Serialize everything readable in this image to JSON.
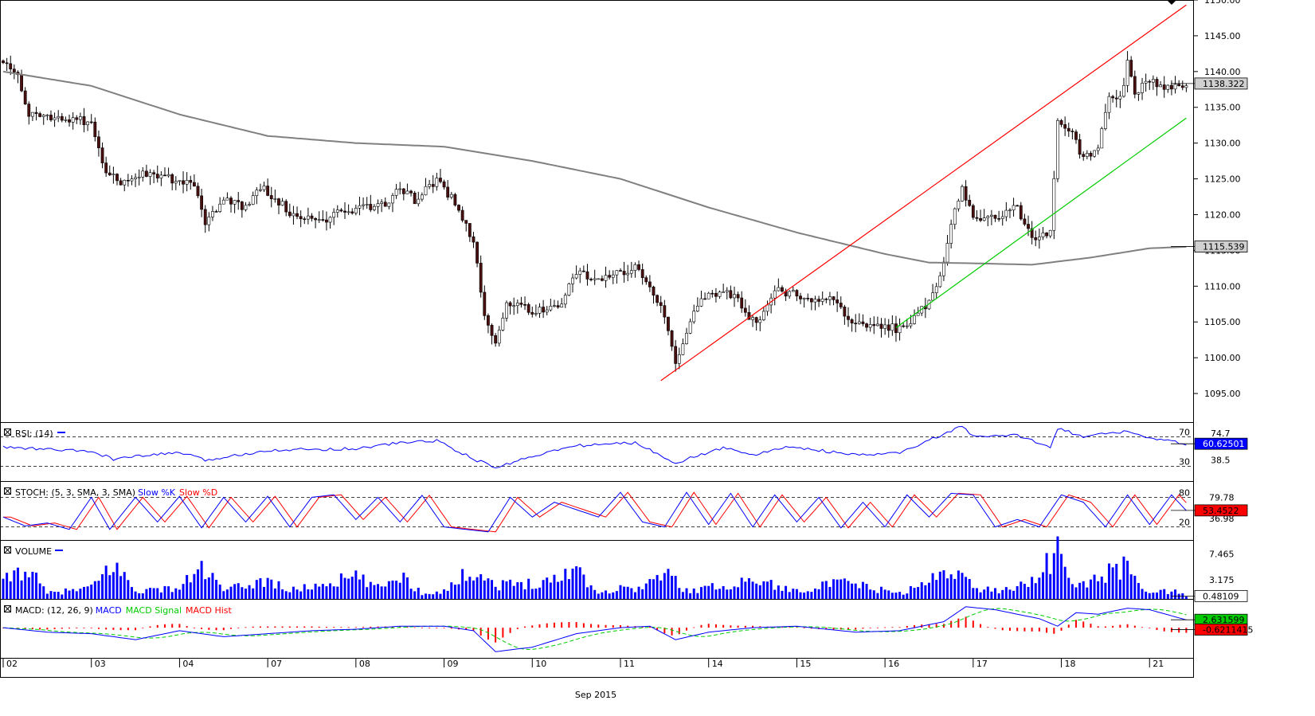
{
  "colors": {
    "bull": "#ffffff",
    "bear": "#4a1010",
    "wick": "#000000",
    "ma": "#808080",
    "upper_channel": "#ff0000",
    "lower_channel": "#00cc00",
    "rsi": "#0000ff",
    "stoch_k": "#0000ff",
    "stoch_d": "#ff0000",
    "volume": "#0000ff",
    "macd": "#0000ff",
    "macd_signal": "#00cc00",
    "macd_hist": "#ff0000",
    "price_label_bg": "#d0d0d0",
    "volume_label_bg": "#ffffff",
    "stoch_label_bg": "#ff0000",
    "macd_label_bg": "#00cc00",
    "macd_hist_label_bg": "#ff0000"
  },
  "chart_data": {
    "type": "candlestick",
    "x_axis": {
      "month_label": "Sep 2015",
      "day_ticks": [
        {
          "label": "02",
          "index": 0
        },
        {
          "label": "03",
          "index": 24
        },
        {
          "label": "04",
          "index": 48
        },
        {
          "label": "07",
          "index": 72
        },
        {
          "label": "08",
          "index": 96
        },
        {
          "label": "09",
          "index": 120
        },
        {
          "label": "10",
          "index": 144
        },
        {
          "label": "11",
          "index": 168
        },
        {
          "label": "14",
          "index": 192
        },
        {
          "label": "15",
          "index": 216
        },
        {
          "label": "16",
          "index": 240
        },
        {
          "label": "17",
          "index": 264
        },
        {
          "label": "18",
          "index": 288
        },
        {
          "label": "21",
          "index": 312
        }
      ],
      "bar_count": 323
    },
    "price_panel": {
      "ylim": [
        1091,
        1150
      ],
      "ticks": [
        "1150.00",
        "1145.00",
        "1140.00",
        "1135.00",
        "1130.00",
        "1125.00",
        "1120.00",
        "1115.00",
        "1110.00",
        "1105.00",
        "1100.00",
        "1095.00"
      ],
      "last_price_label": "1138.322",
      "ma_label": "1115.539",
      "anchors": [
        {
          "i": 0,
          "p": 1141.5
        },
        {
          "i": 4,
          "p": 1139
        },
        {
          "i": 7,
          "p": 1134
        },
        {
          "i": 14,
          "p": 1133.5
        },
        {
          "i": 24,
          "p": 1133
        },
        {
          "i": 28,
          "p": 1126
        },
        {
          "i": 32,
          "p": 1124.5
        },
        {
          "i": 40,
          "p": 1126
        },
        {
          "i": 48,
          "p": 1124.5
        },
        {
          "i": 52,
          "p": 1124
        },
        {
          "i": 55,
          "p": 1119
        },
        {
          "i": 60,
          "p": 1122
        },
        {
          "i": 66,
          "p": 1121
        },
        {
          "i": 70,
          "p": 1124
        },
        {
          "i": 80,
          "p": 1119.5
        },
        {
          "i": 88,
          "p": 1119.5
        },
        {
          "i": 96,
          "p": 1121
        },
        {
          "i": 104,
          "p": 1121.5
        },
        {
          "i": 108,
          "p": 1124
        },
        {
          "i": 112,
          "p": 1122
        },
        {
          "i": 118,
          "p": 1125
        },
        {
          "i": 124,
          "p": 1121
        },
        {
          "i": 128,
          "p": 1116
        },
        {
          "i": 131,
          "p": 1106
        },
        {
          "i": 134,
          "p": 1102
        },
        {
          "i": 137,
          "p": 1108
        },
        {
          "i": 144,
          "p": 1106.5
        },
        {
          "i": 152,
          "p": 1107.5
        },
        {
          "i": 156,
          "p": 1112
        },
        {
          "i": 160,
          "p": 1111
        },
        {
          "i": 172,
          "p": 1112.5
        },
        {
          "i": 176,
          "p": 1110
        },
        {
          "i": 180,
          "p": 1106
        },
        {
          "i": 183,
          "p": 1099.5
        },
        {
          "i": 186,
          "p": 1104
        },
        {
          "i": 190,
          "p": 1108
        },
        {
          "i": 196,
          "p": 1109.5
        },
        {
          "i": 200,
          "p": 1108
        },
        {
          "i": 205,
          "p": 1104.5
        },
        {
          "i": 210,
          "p": 1109.5
        },
        {
          "i": 214,
          "p": 1109
        },
        {
          "i": 220,
          "p": 1108
        },
        {
          "i": 226,
          "p": 1108
        },
        {
          "i": 232,
          "p": 1104.5
        },
        {
          "i": 238,
          "p": 1104.5
        },
        {
          "i": 244,
          "p": 1104
        },
        {
          "i": 248,
          "p": 1105.5
        },
        {
          "i": 252,
          "p": 1108
        },
        {
          "i": 256,
          "p": 1113
        },
        {
          "i": 258,
          "p": 1119
        },
        {
          "i": 261,
          "p": 1124
        },
        {
          "i": 264,
          "p": 1119.5
        },
        {
          "i": 272,
          "p": 1120
        },
        {
          "i": 276,
          "p": 1121
        },
        {
          "i": 280,
          "p": 1116.5
        },
        {
          "i": 285,
          "p": 1117.5
        },
        {
          "i": 287,
          "p": 1133
        },
        {
          "i": 290,
          "p": 1132
        },
        {
          "i": 294,
          "p": 1128
        },
        {
          "i": 298,
          "p": 1129.5
        },
        {
          "i": 301,
          "p": 1136
        },
        {
          "i": 304,
          "p": 1136
        },
        {
          "i": 306,
          "p": 1141
        },
        {
          "i": 308,
          "p": 1137
        },
        {
          "i": 312,
          "p": 1139
        },
        {
          "i": 316,
          "p": 1137.5
        },
        {
          "i": 322,
          "p": 1138.3
        }
      ],
      "ma_anchors": [
        {
          "i": 0,
          "p": 1140
        },
        {
          "i": 24,
          "p": 1138
        },
        {
          "i": 48,
          "p": 1134
        },
        {
          "i": 72,
          "p": 1131
        },
        {
          "i": 96,
          "p": 1130
        },
        {
          "i": 120,
          "p": 1129.5
        },
        {
          "i": 144,
          "p": 1127.5
        },
        {
          "i": 168,
          "p": 1125
        },
        {
          "i": 192,
          "p": 1121
        },
        {
          "i": 216,
          "p": 1117.5
        },
        {
          "i": 240,
          "p": 1114.5
        },
        {
          "i": 252,
          "p": 1113.3
        },
        {
          "i": 264,
          "p": 1113.2
        },
        {
          "i": 280,
          "p": 1113
        },
        {
          "i": 296,
          "p": 1114
        },
        {
          "i": 312,
          "p": 1115.3
        },
        {
          "i": 322,
          "p": 1115.5
        }
      ],
      "upper_channel": [
        {
          "i": 179,
          "p": 1096.8
        },
        {
          "i": 322,
          "p": 1149.3
        }
      ],
      "lower_channel": [
        {
          "i": 243,
          "p": 1104.2
        },
        {
          "i": 322,
          "p": 1133.5
        }
      ]
    },
    "rsi_panel": {
      "title": "RSI: (14)",
      "levels": [
        70,
        30
      ],
      "level_labels": [
        "70",
        "30"
      ],
      "ylim": [
        10,
        90
      ],
      "ticks": [
        "74.7",
        "38.5"
      ],
      "last_label": "60.62501",
      "anchors": [
        {
          "i": 0,
          "v": 56
        },
        {
          "i": 24,
          "v": 50
        },
        {
          "i": 30,
          "v": 40
        },
        {
          "i": 48,
          "v": 49
        },
        {
          "i": 55,
          "v": 38
        },
        {
          "i": 72,
          "v": 52
        },
        {
          "i": 96,
          "v": 54
        },
        {
          "i": 108,
          "v": 62
        },
        {
          "i": 118,
          "v": 65
        },
        {
          "i": 128,
          "v": 40
        },
        {
          "i": 134,
          "v": 28
        },
        {
          "i": 144,
          "v": 44
        },
        {
          "i": 156,
          "v": 58
        },
        {
          "i": 172,
          "v": 62
        },
        {
          "i": 183,
          "v": 35
        },
        {
          "i": 196,
          "v": 55
        },
        {
          "i": 205,
          "v": 46
        },
        {
          "i": 214,
          "v": 57
        },
        {
          "i": 232,
          "v": 45
        },
        {
          "i": 244,
          "v": 48
        },
        {
          "i": 256,
          "v": 74
        },
        {
          "i": 261,
          "v": 84
        },
        {
          "i": 264,
          "v": 70
        },
        {
          "i": 276,
          "v": 72
        },
        {
          "i": 285,
          "v": 57
        },
        {
          "i": 287,
          "v": 82
        },
        {
          "i": 294,
          "v": 70
        },
        {
          "i": 306,
          "v": 78
        },
        {
          "i": 312,
          "v": 68
        },
        {
          "i": 322,
          "v": 60.6
        }
      ]
    },
    "stoch_panel": {
      "title": "STOCH: (5, 3, SMA, 3, SMA)",
      "legend": [
        "Slow %K",
        "Slow %D"
      ],
      "levels": [
        80,
        20
      ],
      "level_labels": [
        "80",
        "20"
      ],
      "ylim": [
        0,
        100
      ],
      "ticks": [
        "79.78",
        "36.98"
      ],
      "last_label": "53.4522",
      "k_anchors": [
        {
          "i": 0,
          "v": 40
        },
        {
          "i": 6,
          "v": 22
        },
        {
          "i": 12,
          "v": 28
        },
        {
          "i": 18,
          "v": 15
        },
        {
          "i": 24,
          "v": 80
        },
        {
          "i": 29,
          "v": 15
        },
        {
          "i": 36,
          "v": 80
        },
        {
          "i": 42,
          "v": 30
        },
        {
          "i": 48,
          "v": 82
        },
        {
          "i": 54,
          "v": 18
        },
        {
          "i": 60,
          "v": 80
        },
        {
          "i": 66,
          "v": 30
        },
        {
          "i": 72,
          "v": 82
        },
        {
          "i": 78,
          "v": 20
        },
        {
          "i": 84,
          "v": 80
        },
        {
          "i": 90,
          "v": 85
        },
        {
          "i": 96,
          "v": 35
        },
        {
          "i": 102,
          "v": 80
        },
        {
          "i": 108,
          "v": 30
        },
        {
          "i": 114,
          "v": 84
        },
        {
          "i": 120,
          "v": 20
        },
        {
          "i": 126,
          "v": 15
        },
        {
          "i": 132,
          "v": 10
        },
        {
          "i": 138,
          "v": 80
        },
        {
          "i": 144,
          "v": 40
        },
        {
          "i": 150,
          "v": 70
        },
        {
          "i": 156,
          "v": 55
        },
        {
          "i": 162,
          "v": 40
        },
        {
          "i": 168,
          "v": 90
        },
        {
          "i": 174,
          "v": 30
        },
        {
          "i": 180,
          "v": 20
        },
        {
          "i": 186,
          "v": 90
        },
        {
          "i": 192,
          "v": 25
        },
        {
          "i": 198,
          "v": 88
        },
        {
          "i": 204,
          "v": 20
        },
        {
          "i": 210,
          "v": 85
        },
        {
          "i": 216,
          "v": 30
        },
        {
          "i": 222,
          "v": 80
        },
        {
          "i": 228,
          "v": 18
        },
        {
          "i": 234,
          "v": 70
        },
        {
          "i": 240,
          "v": 20
        },
        {
          "i": 246,
          "v": 85
        },
        {
          "i": 252,
          "v": 40
        },
        {
          "i": 258,
          "v": 88
        },
        {
          "i": 264,
          "v": 85
        },
        {
          "i": 270,
          "v": 20
        },
        {
          "i": 276,
          "v": 35
        },
        {
          "i": 282,
          "v": 20
        },
        {
          "i": 288,
          "v": 85
        },
        {
          "i": 294,
          "v": 70
        },
        {
          "i": 300,
          "v": 20
        },
        {
          "i": 306,
          "v": 85
        },
        {
          "i": 312,
          "v": 25
        },
        {
          "i": 318,
          "v": 85
        },
        {
          "i": 322,
          "v": 53
        }
      ],
      "d_lag": 2
    },
    "volume_panel": {
      "title": "VOLUME",
      "ylim": [
        0,
        9
      ],
      "ticks": [
        "7.465",
        "3.175"
      ],
      "last_label": "0.48109",
      "anchors": [
        {
          "i": 0,
          "v": 3
        },
        {
          "i": 6,
          "v": 6
        },
        {
          "i": 12,
          "v": 1
        },
        {
          "i": 24,
          "v": 2
        },
        {
          "i": 30,
          "v": 6.5
        },
        {
          "i": 36,
          "v": 1.5
        },
        {
          "i": 48,
          "v": 2
        },
        {
          "i": 54,
          "v": 5.8
        },
        {
          "i": 60,
          "v": 1.5
        },
        {
          "i": 72,
          "v": 3.5
        },
        {
          "i": 78,
          "v": 1.5
        },
        {
          "i": 96,
          "v": 4
        },
        {
          "i": 102,
          "v": 2
        },
        {
          "i": 108,
          "v": 4.5
        },
        {
          "i": 114,
          "v": 1
        },
        {
          "i": 120,
          "v": 1.5
        },
        {
          "i": 128,
          "v": 5.5
        },
        {
          "i": 134,
          "v": 2.5
        },
        {
          "i": 144,
          "v": 3
        },
        {
          "i": 150,
          "v": 3.5
        },
        {
          "i": 156,
          "v": 6
        },
        {
          "i": 162,
          "v": 1
        },
        {
          "i": 168,
          "v": 2
        },
        {
          "i": 174,
          "v": 2
        },
        {
          "i": 180,
          "v": 5
        },
        {
          "i": 186,
          "v": 1.5
        },
        {
          "i": 192,
          "v": 2
        },
        {
          "i": 200,
          "v": 3
        },
        {
          "i": 206,
          "v": 3.5
        },
        {
          "i": 214,
          "v": 1.5
        },
        {
          "i": 224,
          "v": 2.5
        },
        {
          "i": 230,
          "v": 3
        },
        {
          "i": 236,
          "v": 2
        },
        {
          "i": 244,
          "v": 1
        },
        {
          "i": 252,
          "v": 3
        },
        {
          "i": 258,
          "v": 6.5
        },
        {
          "i": 264,
          "v": 2
        },
        {
          "i": 272,
          "v": 1.5
        },
        {
          "i": 280,
          "v": 3.5
        },
        {
          "i": 287,
          "v": 8.4
        },
        {
          "i": 292,
          "v": 2
        },
        {
          "i": 298,
          "v": 4
        },
        {
          "i": 306,
          "v": 6
        },
        {
          "i": 312,
          "v": 1
        },
        {
          "i": 318,
          "v": 1.5
        },
        {
          "i": 322,
          "v": 0.5
        }
      ]
    },
    "macd_panel": {
      "title": "MACD: (12, 26, 9)",
      "legend": [
        "MACD",
        "MACD Signal",
        "MACD Hist"
      ],
      "ylim": [
        -9,
        8
      ],
      "ticks": [
        "2.631599",
        "-0.6211415"
      ],
      "last_label_macd": "2.631599",
      "last_label_hist": "-0.6211415",
      "macd_anchors": [
        {
          "i": 0,
          "v": 0
        },
        {
          "i": 12,
          "v": -1.5
        },
        {
          "i": 24,
          "v": -2
        },
        {
          "i": 36,
          "v": -4
        },
        {
          "i": 48,
          "v": -1
        },
        {
          "i": 60,
          "v": -3
        },
        {
          "i": 72,
          "v": -2
        },
        {
          "i": 84,
          "v": -1
        },
        {
          "i": 96,
          "v": -0.5
        },
        {
          "i": 108,
          "v": 0.5
        },
        {
          "i": 120,
          "v": 0.5
        },
        {
          "i": 128,
          "v": -1
        },
        {
          "i": 134,
          "v": -8
        },
        {
          "i": 144,
          "v": -6.5
        },
        {
          "i": 156,
          "v": -2
        },
        {
          "i": 168,
          "v": 0
        },
        {
          "i": 176,
          "v": 0.5
        },
        {
          "i": 183,
          "v": -4
        },
        {
          "i": 192,
          "v": -1.5
        },
        {
          "i": 204,
          "v": 0
        },
        {
          "i": 216,
          "v": 0.5
        },
        {
          "i": 232,
          "v": -1.5
        },
        {
          "i": 244,
          "v": -1
        },
        {
          "i": 256,
          "v": 2
        },
        {
          "i": 262,
          "v": 7
        },
        {
          "i": 270,
          "v": 6
        },
        {
          "i": 282,
          "v": 3
        },
        {
          "i": 287,
          "v": 0.5
        },
        {
          "i": 292,
          "v": 5
        },
        {
          "i": 298,
          "v": 4.5
        },
        {
          "i": 306,
          "v": 6.5
        },
        {
          "i": 312,
          "v": 6
        },
        {
          "i": 322,
          "v": 2.6
        }
      ],
      "signal_lag": 5
    }
  }
}
